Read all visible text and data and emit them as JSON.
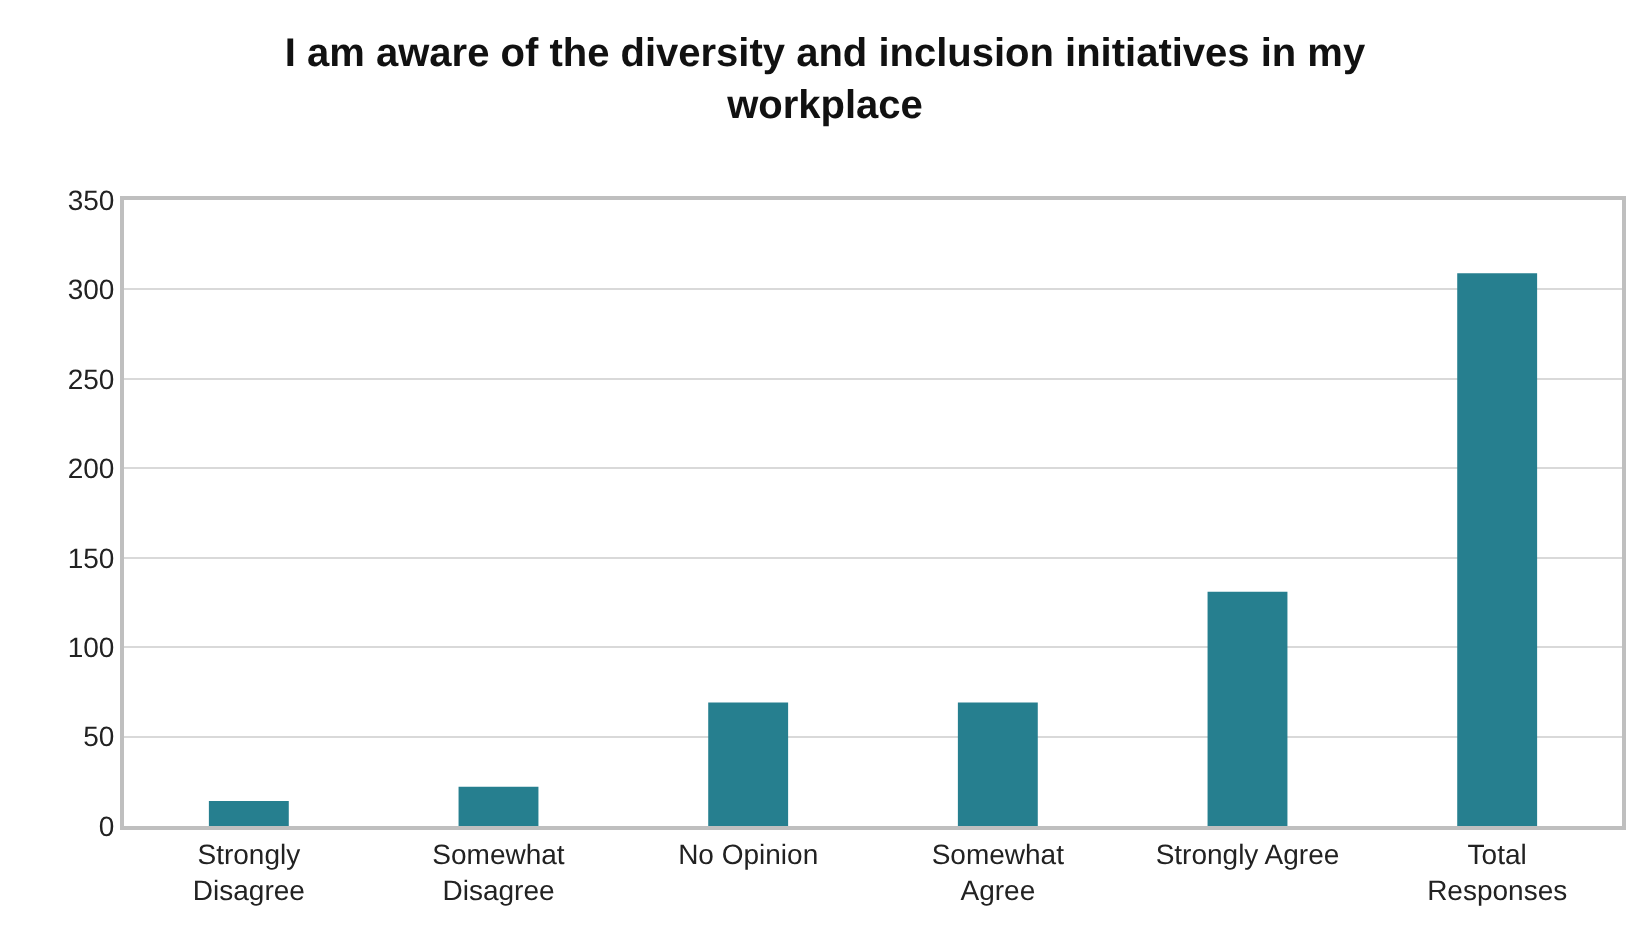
{
  "chart_data": {
    "type": "bar",
    "title": "I am aware of the diversity and inclusion initiatives in my workplace",
    "categories": [
      "Strongly\nDisagree",
      "Somewhat\nDisagree",
      "No Opinion",
      "Somewhat\nAgree",
      "Strongly Agree",
      "Total\nResponses"
    ],
    "values": [
      14,
      22,
      69,
      69,
      131,
      309
    ],
    "color": "#267f8f",
    "ylim": [
      0,
      350
    ],
    "yticks": [
      0,
      50,
      100,
      150,
      200,
      250,
      300,
      350
    ],
    "grid": "y"
  }
}
